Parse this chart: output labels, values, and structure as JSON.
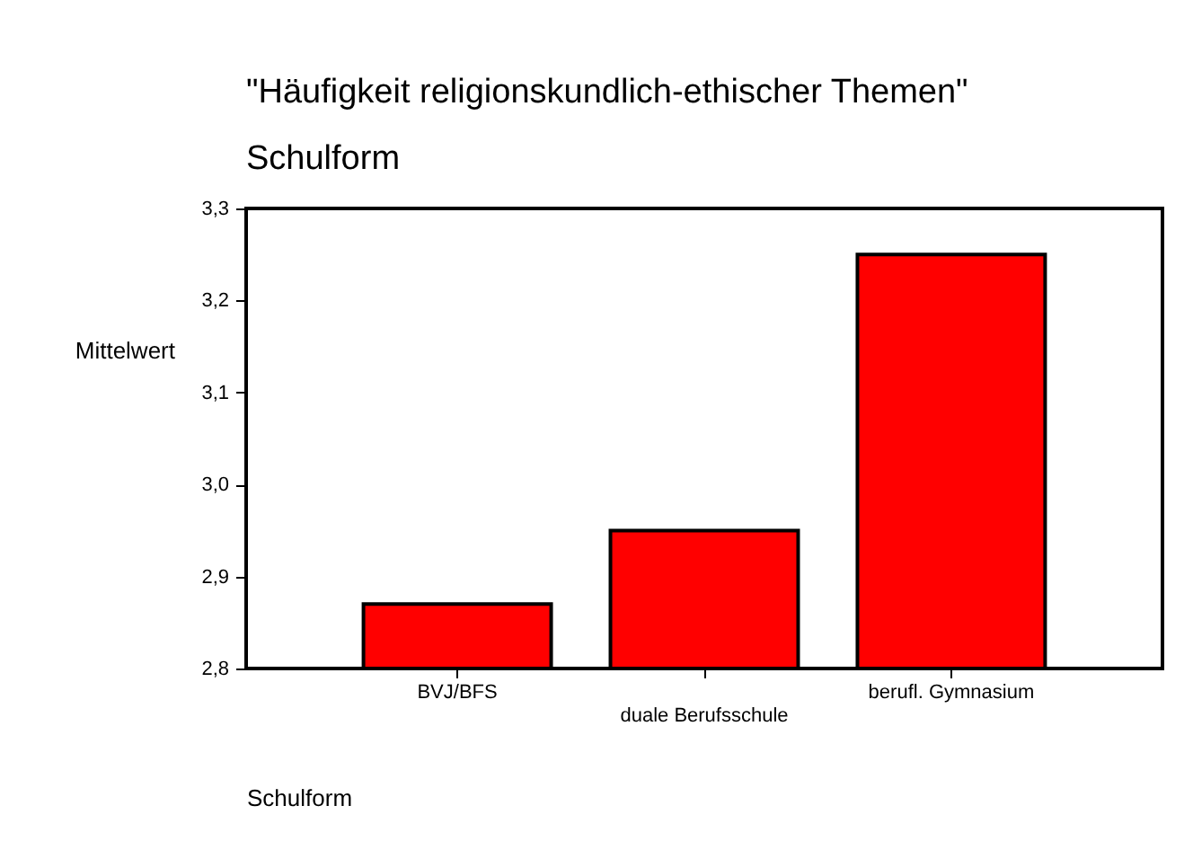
{
  "chart_data": {
    "type": "bar",
    "title": "\"Häufigkeit religionskundlich-ethischer Themen\"",
    "subtitle": "Schulform",
    "xlabel": "Schulform",
    "ylabel": "Mittelwert",
    "categories": [
      "BVJ/BFS",
      "duale Berufsschule",
      "berufl. Gymnasium"
    ],
    "values": [
      2.87,
      2.95,
      3.25
    ],
    "color": "#ff0000",
    "ylim": [
      2.8,
      3.3
    ],
    "yticks": [
      {
        "value": 2.8,
        "label": "2,8"
      },
      {
        "value": 2.9,
        "label": "2,9"
      },
      {
        "value": 3.0,
        "label": "3,0"
      },
      {
        "value": 3.1,
        "label": "3,1"
      },
      {
        "value": 3.2,
        "label": "3,2"
      },
      {
        "value": 3.3,
        "label": "3,3"
      }
    ],
    "grid": false
  }
}
